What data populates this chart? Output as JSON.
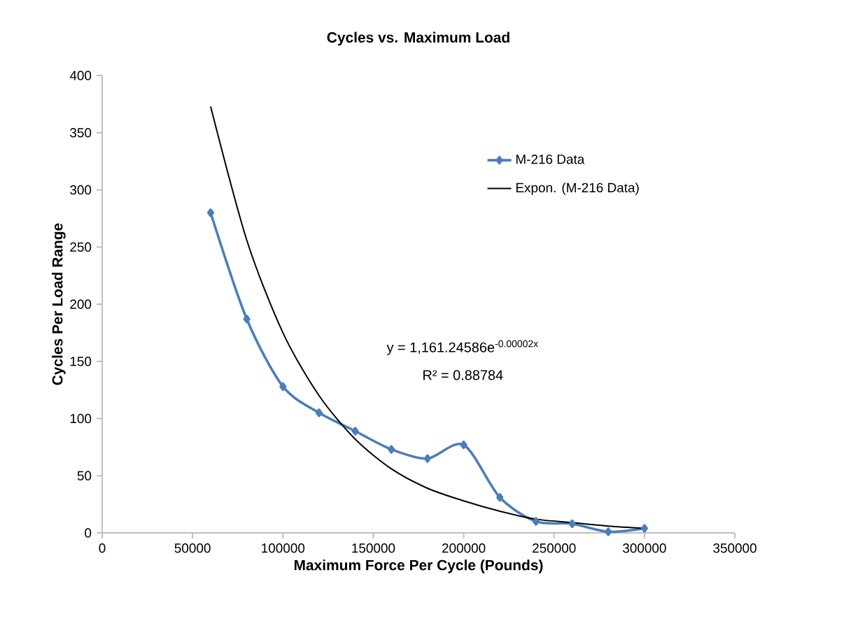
{
  "chart_data": {
    "type": "line",
    "title": "Cycles vs. Maximum Load",
    "xlabel": "Maximum Force Per Cycle (Pounds)",
    "ylabel": "Cycles Per Load Range",
    "xlim": [
      0,
      350000
    ],
    "xticks": [
      0,
      50000,
      100000,
      150000,
      200000,
      250000,
      300000,
      350000
    ],
    "ylim": [
      0,
      400
    ],
    "yticks": [
      0,
      50,
      100,
      150,
      200,
      250,
      300,
      350,
      400
    ],
    "legend": "top right",
    "grid": false,
    "line_style": "solid",
    "series": [
      {
        "name": "M-216 Data",
        "color": "#4a7ebb",
        "marker": "diamond",
        "x": [
          60000,
          80000,
          100000,
          120000,
          140000,
          160000,
          180000,
          200000,
          220000,
          240000,
          260000,
          280000,
          300000
        ],
        "values": [
          280,
          187,
          128,
          105,
          89,
          73,
          65,
          77,
          31,
          10,
          8,
          1,
          4
        ]
      },
      {
        "name": "Expon. (M-216 Data)",
        "type": "line",
        "color": "#000000",
        "marker": "none",
        "x": [
          60000,
          80000,
          100000,
          120000,
          140000,
          160000,
          180000,
          200000,
          220000,
          240000,
          260000,
          280000,
          300000
        ],
        "values": [
          373,
          256,
          175,
          120,
          82,
          56,
          39,
          28,
          19,
          12,
          9,
          6,
          4
        ]
      }
    ],
    "annotations": [
      "y = 1,161.24586e$^{-0.00002x}$",
      "R² = 0.88784"
    ]
  }
}
